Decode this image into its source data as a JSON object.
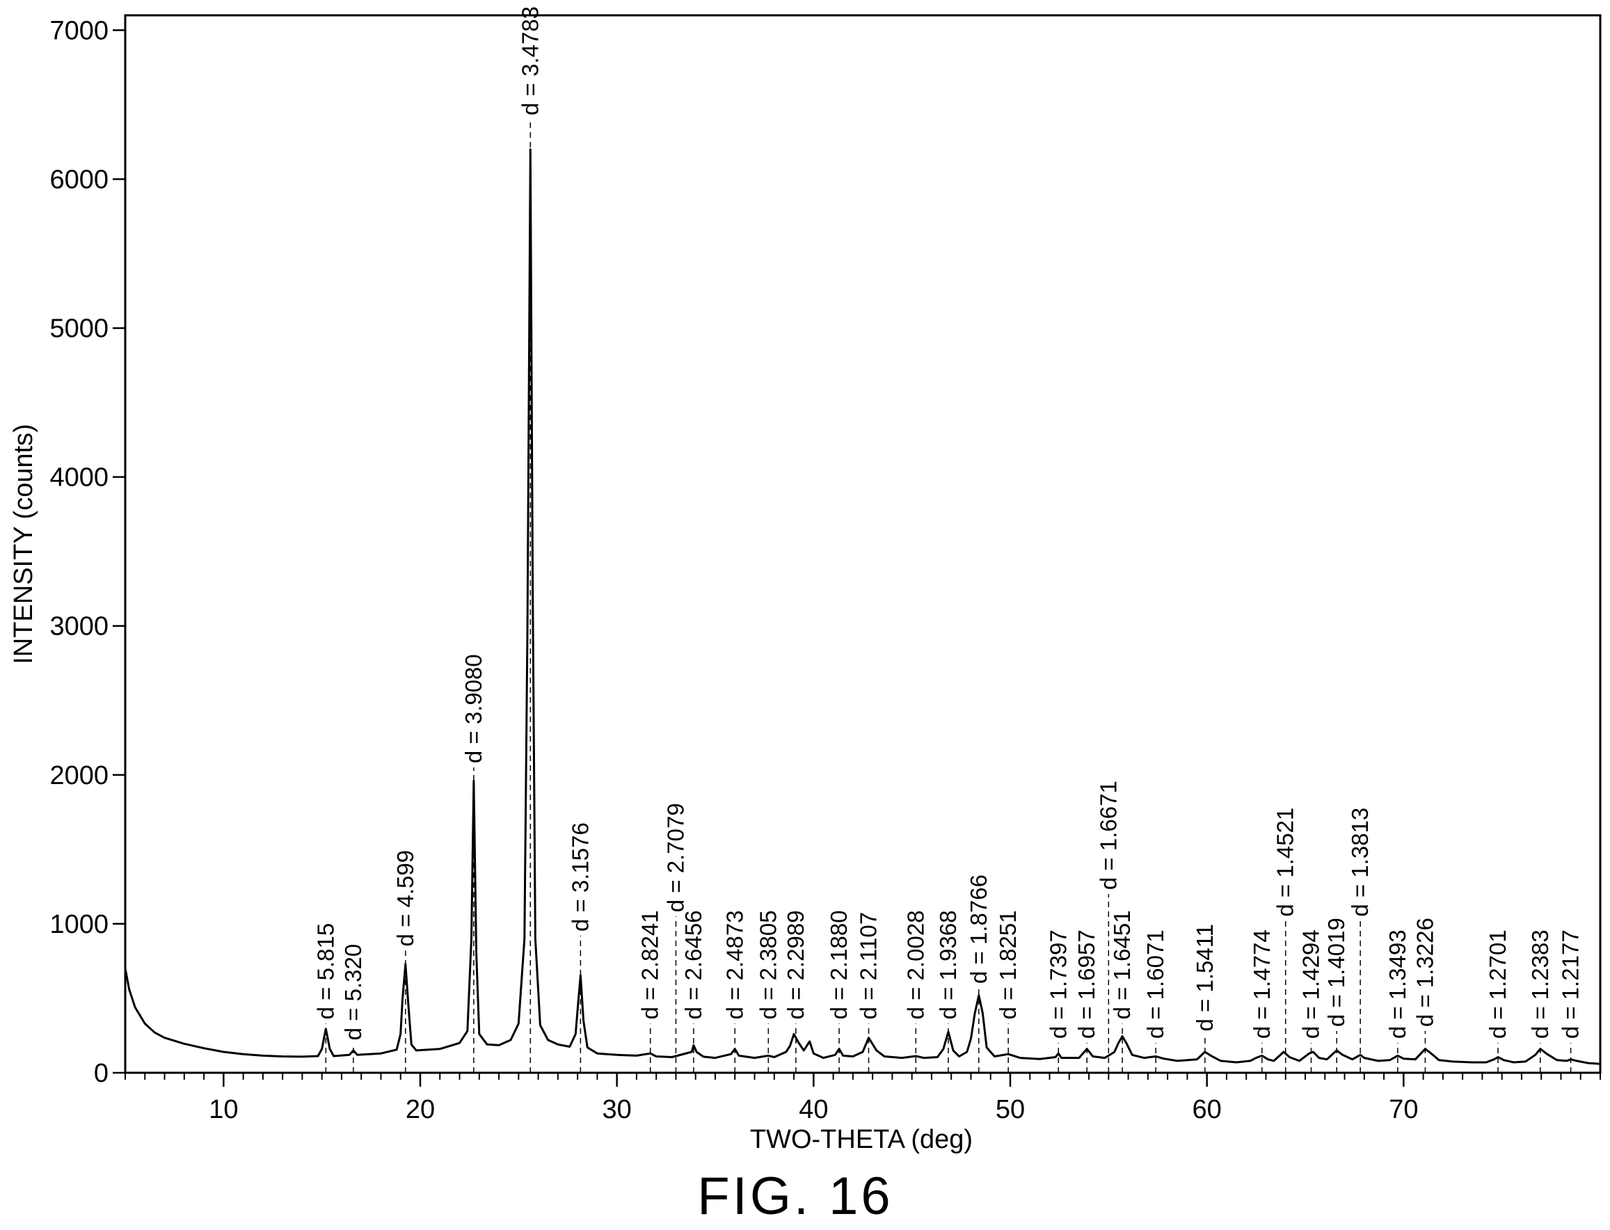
{
  "chart_data": {
    "type": "line",
    "xlabel": "TWO-THETA (deg)",
    "ylabel": "INTENSITY (counts)",
    "xlim": [
      5,
      80
    ],
    "ylim": [
      0,
      7100
    ],
    "x_ticks": [
      10,
      20,
      30,
      40,
      50,
      60,
      70
    ],
    "x_minor_step": 1,
    "y_ticks": [
      0,
      1000,
      2000,
      3000,
      4000,
      5000,
      6000,
      7000
    ],
    "grid": false,
    "legend": "none",
    "series": [
      {
        "points": [
          [
            5.0,
            700
          ],
          [
            5.2,
            560
          ],
          [
            5.5,
            440
          ],
          [
            6.0,
            330
          ],
          [
            6.5,
            270
          ],
          [
            7.0,
            235
          ],
          [
            8.0,
            195
          ],
          [
            9.0,
            165
          ],
          [
            10.0,
            140
          ],
          [
            11.0,
            125
          ],
          [
            12.0,
            115
          ],
          [
            13.0,
            110
          ],
          [
            14.0,
            108
          ],
          [
            14.8,
            112
          ],
          [
            15.0,
            160
          ],
          [
            15.2,
            295
          ],
          [
            15.4,
            160
          ],
          [
            15.6,
            112
          ],
          [
            16.4,
            120
          ],
          [
            16.6,
            150
          ],
          [
            16.8,
            120
          ],
          [
            18.0,
            130
          ],
          [
            18.8,
            155
          ],
          [
            19.0,
            260
          ],
          [
            19.1,
            500
          ],
          [
            19.25,
            730
          ],
          [
            19.4,
            450
          ],
          [
            19.55,
            190
          ],
          [
            19.8,
            150
          ],
          [
            21.0,
            160
          ],
          [
            22.0,
            200
          ],
          [
            22.4,
            280
          ],
          [
            22.6,
            900
          ],
          [
            22.72,
            1960
          ],
          [
            22.85,
            800
          ],
          [
            23.0,
            260
          ],
          [
            23.4,
            190
          ],
          [
            24.0,
            185
          ],
          [
            24.6,
            220
          ],
          [
            25.0,
            330
          ],
          [
            25.3,
            900
          ],
          [
            25.45,
            3000
          ],
          [
            25.6,
            6200
          ],
          [
            25.72,
            3200
          ],
          [
            25.85,
            900
          ],
          [
            26.1,
            320
          ],
          [
            26.5,
            220
          ],
          [
            27.0,
            190
          ],
          [
            27.6,
            175
          ],
          [
            27.9,
            260
          ],
          [
            28.0,
            420
          ],
          [
            28.15,
            655
          ],
          [
            28.3,
            350
          ],
          [
            28.5,
            170
          ],
          [
            29.0,
            130
          ],
          [
            30.0,
            120
          ],
          [
            31.0,
            115
          ],
          [
            31.7,
            130
          ],
          [
            32.0,
            110
          ],
          [
            32.8,
            105
          ],
          [
            33.0,
            112
          ],
          [
            33.8,
            140
          ],
          [
            33.9,
            185
          ],
          [
            34.05,
            140
          ],
          [
            34.4,
            108
          ],
          [
            35.0,
            100
          ],
          [
            35.8,
            125
          ],
          [
            36.0,
            160
          ],
          [
            36.2,
            115
          ],
          [
            37.0,
            100
          ],
          [
            37.7,
            115
          ],
          [
            38.0,
            105
          ],
          [
            38.6,
            140
          ],
          [
            38.8,
            180
          ],
          [
            39.0,
            260
          ],
          [
            39.2,
            210
          ],
          [
            39.5,
            150
          ],
          [
            39.8,
            210
          ],
          [
            40.0,
            130
          ],
          [
            40.5,
            100
          ],
          [
            41.1,
            120
          ],
          [
            41.3,
            160
          ],
          [
            41.5,
            115
          ],
          [
            42.0,
            110
          ],
          [
            42.5,
            140
          ],
          [
            42.8,
            235
          ],
          [
            43.2,
            150
          ],
          [
            43.6,
            110
          ],
          [
            44.5,
            100
          ],
          [
            45.2,
            112
          ],
          [
            45.6,
            100
          ],
          [
            46.3,
            105
          ],
          [
            46.6,
            160
          ],
          [
            46.85,
            275
          ],
          [
            47.1,
            150
          ],
          [
            47.4,
            110
          ],
          [
            47.8,
            140
          ],
          [
            48.0,
            230
          ],
          [
            48.2,
            400
          ],
          [
            48.4,
            520
          ],
          [
            48.6,
            400
          ],
          [
            48.8,
            170
          ],
          [
            49.2,
            110
          ],
          [
            49.9,
            125
          ],
          [
            50.5,
            100
          ],
          [
            51.5,
            92
          ],
          [
            52.3,
            105
          ],
          [
            52.45,
            130
          ],
          [
            52.6,
            100
          ],
          [
            53.5,
            100
          ],
          [
            53.9,
            160
          ],
          [
            54.2,
            110
          ],
          [
            54.8,
            100
          ],
          [
            55.0,
            115
          ],
          [
            55.3,
            140
          ],
          [
            55.5,
            200
          ],
          [
            55.7,
            245
          ],
          [
            55.9,
            200
          ],
          [
            56.2,
            120
          ],
          [
            56.8,
            100
          ],
          [
            57.4,
            110
          ],
          [
            57.8,
            95
          ],
          [
            58.5,
            80
          ],
          [
            59.5,
            90
          ],
          [
            59.9,
            140
          ],
          [
            60.2,
            115
          ],
          [
            60.7,
            80
          ],
          [
            61.5,
            70
          ],
          [
            62.2,
            80
          ],
          [
            62.5,
            100
          ],
          [
            62.8,
            115
          ],
          [
            63.1,
            90
          ],
          [
            63.4,
            80
          ],
          [
            63.9,
            140
          ],
          [
            64.2,
            105
          ],
          [
            64.7,
            80
          ],
          [
            65.2,
            130
          ],
          [
            65.4,
            140
          ],
          [
            65.7,
            100
          ],
          [
            66.1,
            90
          ],
          [
            66.6,
            150
          ],
          [
            66.9,
            120
          ],
          [
            67.4,
            90
          ],
          [
            67.8,
            120
          ],
          [
            68.0,
            100
          ],
          [
            68.7,
            80
          ],
          [
            69.3,
            85
          ],
          [
            69.7,
            115
          ],
          [
            70.0,
            95
          ],
          [
            70.6,
            90
          ],
          [
            71.1,
            160
          ],
          [
            71.4,
            130
          ],
          [
            71.8,
            85
          ],
          [
            72.5,
            75
          ],
          [
            73.5,
            70
          ],
          [
            74.2,
            70
          ],
          [
            74.6,
            90
          ],
          [
            74.8,
            105
          ],
          [
            75.1,
            85
          ],
          [
            75.6,
            70
          ],
          [
            76.2,
            75
          ],
          [
            76.7,
            120
          ],
          [
            76.95,
            160
          ],
          [
            77.3,
            125
          ],
          [
            77.8,
            85
          ],
          [
            78.3,
            80
          ],
          [
            78.5,
            90
          ],
          [
            78.8,
            80
          ],
          [
            79.4,
            65
          ],
          [
            80.0,
            60
          ]
        ]
      }
    ],
    "annotations": [
      {
        "x": 15.2,
        "label": "d = 5.815",
        "label_y": 330
      },
      {
        "x": 16.6,
        "label": "d = 5.320",
        "label_y": 190
      },
      {
        "x": 19.25,
        "label": "d = 4.599",
        "label_y": 820
      },
      {
        "x": 22.72,
        "label": "d = 3.9080",
        "label_y": 2050
      },
      {
        "x": 25.6,
        "label": "d = 3.4783",
        "label_y": 6400
      },
      {
        "x": 28.15,
        "label": "d = 3.1576",
        "label_y": 920
      },
      {
        "x": 31.7,
        "label": "d = 2.8241",
        "label_y": 330
      },
      {
        "x": 33.0,
        "label": "d = 2.7079",
        "label_y": 1050
      },
      {
        "x": 33.9,
        "label": "d = 2.6456",
        "label_y": 330
      },
      {
        "x": 36.0,
        "label": "d = 2.4873",
        "label_y": 330
      },
      {
        "x": 37.7,
        "label": "d = 2.3805",
        "label_y": 330
      },
      {
        "x": 39.1,
        "label": "d = 2.2989",
        "label_y": 330
      },
      {
        "x": 41.3,
        "label": "d = 2.1880",
        "label_y": 330
      },
      {
        "x": 42.8,
        "label": "d = 2.1107",
        "label_y": 330
      },
      {
        "x": 45.2,
        "label": "d = 2.0028",
        "label_y": 330
      },
      {
        "x": 46.85,
        "label": "d = 1.9368",
        "label_y": 330
      },
      {
        "x": 48.4,
        "label": "d = 1.8766",
        "label_y": 570
      },
      {
        "x": 49.9,
        "label": "d = 1.8251",
        "label_y": 330
      },
      {
        "x": 52.45,
        "label": "d = 1.7397",
        "label_y": 200
      },
      {
        "x": 53.9,
        "label": "d = 1.6957",
        "label_y": 200
      },
      {
        "x": 55.0,
        "label": "d = 1.6671",
        "label_y": 1200
      },
      {
        "x": 55.7,
        "label": "d = 1.6451",
        "label_y": 330
      },
      {
        "x": 57.4,
        "label": "d = 1.6071",
        "label_y": 200
      },
      {
        "x": 59.9,
        "label": "d = 1.5411",
        "label_y": 250
      },
      {
        "x": 62.8,
        "label": "d = 1.4774",
        "label_y": 200
      },
      {
        "x": 64.0,
        "label": "d = 1.4521",
        "label_y": 1020
      },
      {
        "x": 65.3,
        "label": "d = 1.4294",
        "label_y": 200
      },
      {
        "x": 66.6,
        "label": "d = 1.4019",
        "label_y": 280
      },
      {
        "x": 67.8,
        "label": "d = 1.3813",
        "label_y": 1020
      },
      {
        "x": 69.7,
        "label": "d = 1.3493",
        "label_y": 200
      },
      {
        "x": 71.1,
        "label": "d = 1.3226",
        "label_y": 280
      },
      {
        "x": 74.8,
        "label": "d = 1.2701",
        "label_y": 200
      },
      {
        "x": 76.95,
        "label": "d = 1.2383",
        "label_y": 200
      },
      {
        "x": 78.5,
        "label": "d = 1.2177",
        "label_y": 200
      }
    ]
  },
  "figure": {
    "caption": "FIG. 16"
  }
}
